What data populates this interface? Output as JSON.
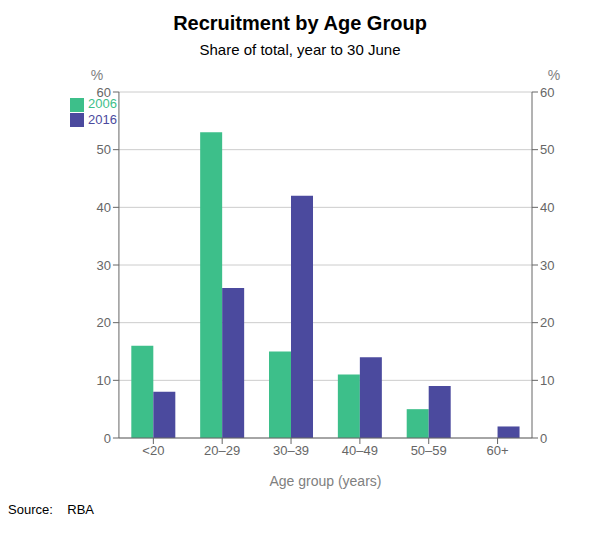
{
  "chart_data": {
    "type": "bar",
    "title": "Recruitment by Age Group",
    "subtitle": "Share of total, year to 30 June",
    "xlabel": "Age group (years)",
    "ylabel": "%",
    "y2label": "%",
    "categories": [
      "<20",
      "20–29",
      "30–39",
      "40–49",
      "50–59",
      "60+"
    ],
    "series": [
      {
        "name": "2006",
        "color": "#3dbf8a",
        "values": [
          16,
          53,
          15,
          11,
          5,
          0
        ]
      },
      {
        "name": "2016",
        "color": "#4b4a9e",
        "values": [
          8,
          26,
          42,
          14,
          9,
          2
        ]
      }
    ],
    "ylim": [
      0,
      60
    ],
    "yticks": [
      0,
      10,
      20,
      30,
      40,
      50,
      60
    ],
    "y2lim": [
      0,
      60
    ],
    "y2ticks": [
      0,
      10,
      20,
      30,
      40,
      50,
      60
    ],
    "grid": true,
    "legend": "upper left",
    "annotations": [
      "Source:    RBA"
    ]
  }
}
